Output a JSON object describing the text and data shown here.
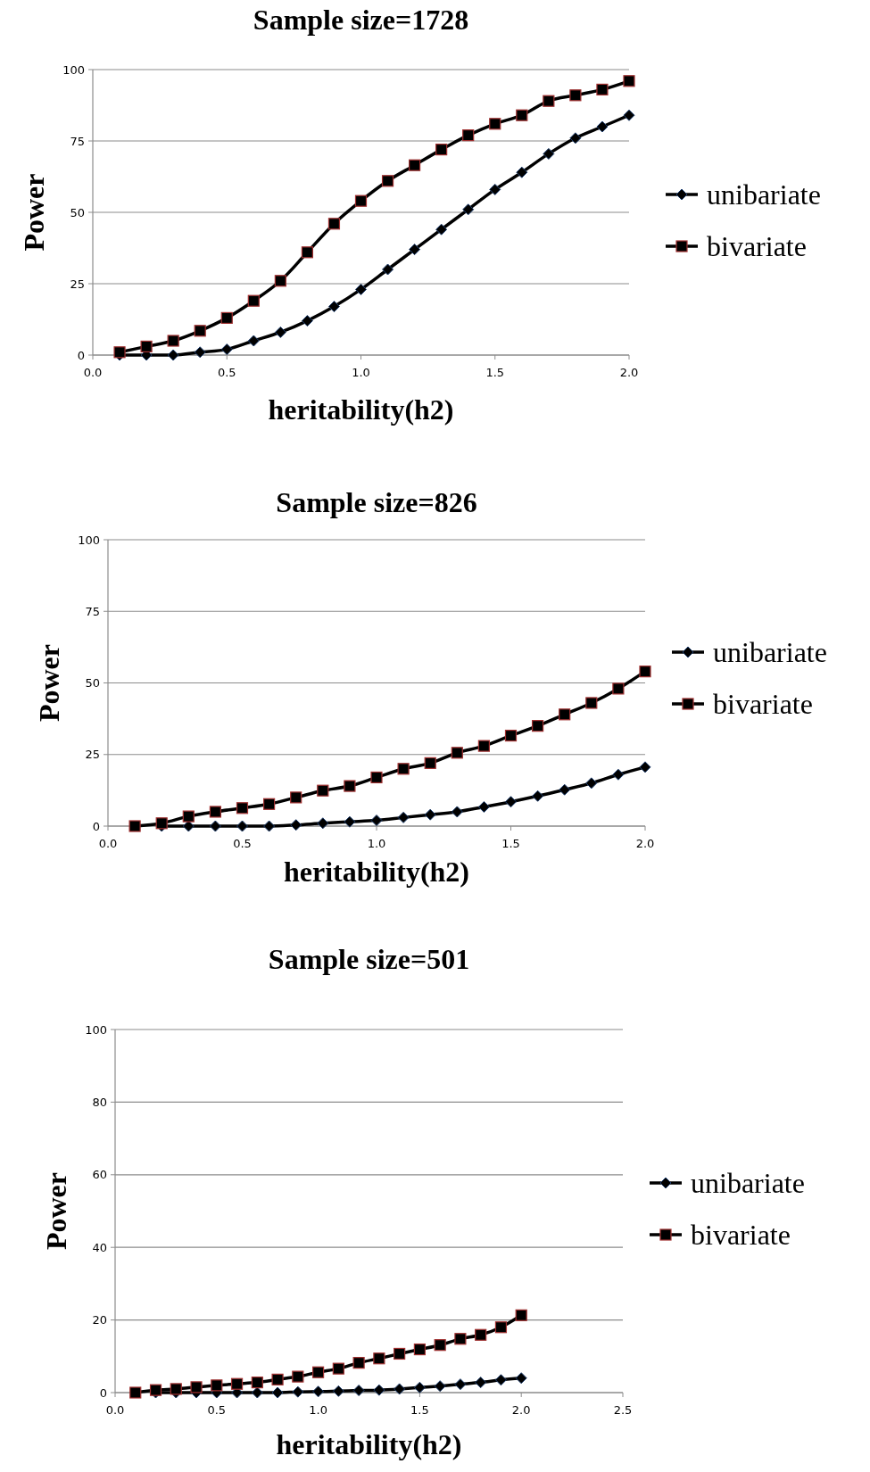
{
  "chart_data": [
    {
      "type": "line",
      "title": "Sample size=1728",
      "xlabel": "heritability(h2)",
      "ylabel": "Power",
      "x": [
        0.1,
        0.2,
        0.3,
        0.4,
        0.5,
        0.6,
        0.7,
        0.8,
        0.9,
        1.0,
        1.1,
        1.2,
        1.3,
        1.4,
        1.5,
        1.6,
        1.7,
        1.8,
        1.9,
        2.0
      ],
      "xlim": [
        0,
        2
      ],
      "xticks": [
        {
          "value": 0,
          "label": "0.0"
        },
        {
          "value": 0.5,
          "label": "0.5"
        },
        {
          "value": 1,
          "label": "1.0"
        },
        {
          "value": 1.5,
          "label": "1.5"
        },
        {
          "value": 2,
          "label": "2.0"
        }
      ],
      "ylim": [
        0,
        100
      ],
      "yticks": [
        0,
        25,
        50,
        75,
        100
      ],
      "grid": "y",
      "legend": "right",
      "line_style": "solid",
      "series": [
        {
          "name": "unibariate",
          "color": "#000000",
          "marker": "diamond",
          "values": [
            0,
            0,
            0,
            1,
            2,
            5,
            8,
            12,
            17,
            23,
            30,
            37,
            44,
            51,
            58,
            64,
            70.5,
            76,
            80,
            84
          ]
        },
        {
          "name": "bivariate",
          "color": "#000000",
          "marker": "square",
          "values": [
            1,
            3,
            5,
            8.5,
            13,
            19,
            26,
            36,
            46,
            54,
            61,
            66.5,
            72,
            77,
            81,
            84,
            89,
            91,
            93,
            96
          ]
        }
      ]
    },
    {
      "type": "line",
      "title": "Sample size=826",
      "xlabel": "heritability(h2)",
      "ylabel": "Power",
      "x": [
        0.1,
        0.2,
        0.3,
        0.4,
        0.5,
        0.6,
        0.7,
        0.8,
        0.9,
        1.0,
        1.1,
        1.2,
        1.3,
        1.4,
        1.5,
        1.6,
        1.7,
        1.8,
        1.9,
        2.0
      ],
      "xlim": [
        0,
        2
      ],
      "xticks": [
        {
          "value": 0,
          "label": "0.0"
        },
        {
          "value": 0.5,
          "label": "0.5"
        },
        {
          "value": 1,
          "label": "1.0"
        },
        {
          "value": 1.5,
          "label": "1.5"
        },
        {
          "value": 2,
          "label": "2.0"
        }
      ],
      "ylim": [
        0,
        100
      ],
      "yticks": [
        0,
        25,
        50,
        75,
        100
      ],
      "grid": "y",
      "legend": "right",
      "line_style": "solid",
      "series": [
        {
          "name": "unibariate",
          "color": "#000000",
          "marker": "diamond",
          "values": [
            null,
            0,
            0,
            0,
            0,
            0,
            0.4,
            1,
            1.5,
            2,
            3,
            4,
            5,
            6.7,
            8.5,
            10.5,
            12.7,
            15,
            18,
            20.6
          ]
        },
        {
          "name": "bivariate",
          "color": "#000000",
          "marker": "square",
          "values": [
            0,
            1,
            3.4,
            5,
            6.3,
            7.7,
            10,
            12.4,
            14,
            17,
            20,
            22,
            25.6,
            28,
            31.6,
            35,
            39,
            43,
            48,
            54
          ]
        }
      ]
    },
    {
      "type": "line",
      "title": "Sample size=501",
      "xlabel": "heritability(h2)",
      "ylabel": "Power",
      "x": [
        0.1,
        0.2,
        0.3,
        0.4,
        0.5,
        0.6,
        0.7,
        0.8,
        0.9,
        1.0,
        1.1,
        1.2,
        1.3,
        1.4,
        1.5,
        1.6,
        1.7,
        1.8,
        1.9,
        2.0
      ],
      "xlim": [
        0,
        2.5
      ],
      "xticks": [
        {
          "value": 0,
          "label": "0.0"
        },
        {
          "value": 0.5,
          "label": "0.5"
        },
        {
          "value": 1,
          "label": "1.0"
        },
        {
          "value": 1.5,
          "label": "1.5"
        },
        {
          "value": 2,
          "label": "2.0"
        },
        {
          "value": 2.5,
          "label": "2.5"
        }
      ],
      "ylim": [
        0,
        100
      ],
      "yticks": [
        0,
        20,
        40,
        60,
        80,
        100
      ],
      "grid": "y",
      "legend": "right",
      "line_style": "solid",
      "series": [
        {
          "name": "unibariate",
          "color": "#000000",
          "marker": "diamond",
          "values": [
            null,
            0,
            0,
            0,
            0,
            0,
            0,
            0,
            0.2,
            0.3,
            0.4,
            0.6,
            0.7,
            1,
            1.4,
            1.8,
            2.3,
            2.8,
            3.5,
            4
          ]
        },
        {
          "name": "bivariate",
          "color": "#000000",
          "marker": "square",
          "values": [
            0,
            0.7,
            1,
            1.5,
            2,
            2.4,
            2.8,
            3.6,
            4.4,
            5.6,
            6.6,
            8.2,
            9.4,
            10.7,
            11.9,
            13.1,
            14.8,
            15.9,
            18,
            21.3
          ]
        }
      ]
    }
  ]
}
